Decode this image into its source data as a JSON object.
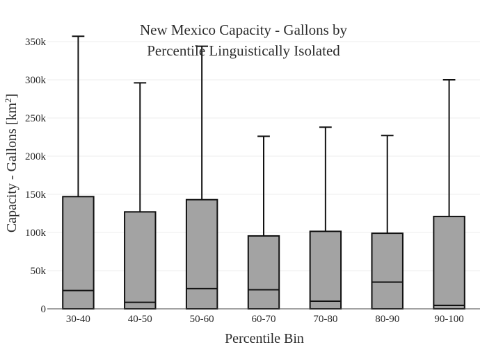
{
  "chart_data": {
    "type": "box",
    "title_lines": [
      "New Mexico Capacity - Gallons by",
      "Percentile Linguistically Isolated"
    ],
    "xlabel": "Percentile Bin",
    "ylabel_main": "Capacity - Gallons  [km",
    "ylabel_sup": "2",
    "ylabel_end": "]",
    "ylim": [
      0,
      370000
    ],
    "yticks": [
      0,
      50000,
      100000,
      150000,
      200000,
      250000,
      300000,
      350000
    ],
    "ytick_labels": [
      "0",
      "50k",
      "100k",
      "150k",
      "200k",
      "250k",
      "300k",
      "350k"
    ],
    "grid": true,
    "categories": [
      "30-40",
      "40-50",
      "50-60",
      "60-70",
      "70-80",
      "80-90",
      "90-100"
    ],
    "boxes": [
      {
        "q1": 0,
        "median": 24000,
        "q3": 147000,
        "min": 0,
        "max": 357000
      },
      {
        "q1": 0,
        "median": 8500,
        "q3": 127000,
        "min": 0,
        "max": 296000
      },
      {
        "q1": 0,
        "median": 26500,
        "q3": 143000,
        "min": 0,
        "max": 344000
      },
      {
        "q1": 0,
        "median": 25000,
        "q3": 95500,
        "min": 0,
        "max": 226000
      },
      {
        "q1": 0,
        "median": 10000,
        "q3": 101500,
        "min": 0,
        "max": 238000
      },
      {
        "q1": 0,
        "median": 35000,
        "q3": 99000,
        "min": 0,
        "max": 227000
      },
      {
        "q1": 0,
        "median": 4500,
        "q3": 121000,
        "min": 0,
        "max": 300000
      }
    ],
    "colors": {
      "box_fill": "#a3a3a3",
      "box_line": "#111111",
      "grid": "#ececec",
      "axis": "#444444"
    }
  }
}
